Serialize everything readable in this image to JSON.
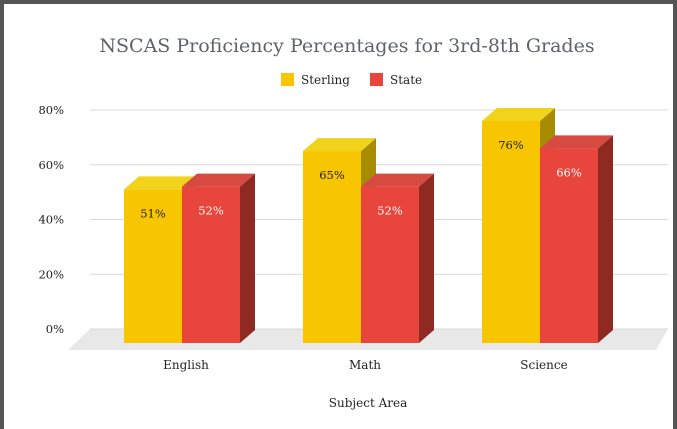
{
  "chart_data": {
    "type": "bar",
    "title": "NSCAS Proficiency Percentages for 3rd-8th Grades",
    "xlabel": "Subject Area",
    "ylabel": "",
    "categories": [
      "English",
      "Math",
      "Science"
    ],
    "series": [
      {
        "name": "Sterling",
        "values": [
          51,
          65,
          76
        ],
        "labels": [
          "51%",
          "65%",
          "76%"
        ],
        "color": "#f7c600",
        "top_color": "#f0d31a",
        "side_color": "#a88c00",
        "label_color": "#222222"
      },
      {
        "name": "State",
        "values": [
          52,
          52,
          66
        ],
        "labels": [
          "52%",
          "52%",
          "66%"
        ],
        "color": "#e8453c",
        "top_color": "#d64a42",
        "side_color": "#8f2a23",
        "label_color": "#ffffff"
      }
    ],
    "ylim": [
      0,
      80
    ],
    "yticks": [
      0,
      20,
      40,
      60,
      80
    ],
    "ytick_labels": [
      "0%",
      "20%",
      "40%",
      "60%",
      "80%"
    ],
    "grid": true,
    "legend_position": "top-center",
    "style": "3d-column"
  }
}
